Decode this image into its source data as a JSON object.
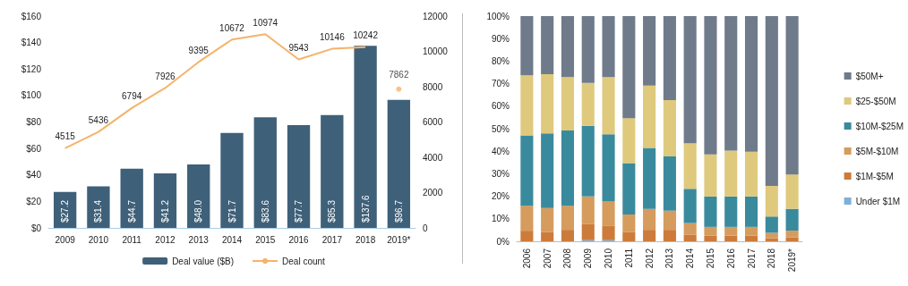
{
  "chart_data": [
    {
      "type": "bar",
      "categories": [
        "2009",
        "2010",
        "2011",
        "2012",
        "2013",
        "2014",
        "2015",
        "2016",
        "2017",
        "2018",
        "2019*"
      ],
      "series": [
        {
          "name": "Deal value ($B)",
          "color": "#3f6079",
          "values": [
            27.2,
            31.4,
            44.7,
            41.2,
            48.0,
            71.7,
            83.6,
            77.7,
            85.3,
            137.6,
            96.7
          ],
          "value_labels": [
            "$27.2",
            "$31.4",
            "$44.7",
            "$41.2",
            "$48.0",
            "$71.7",
            "$83.6",
            "$77.7",
            "$85.3",
            "$137.6",
            "$96.7"
          ]
        },
        {
          "name": "Deal count",
          "type": "line",
          "axis": "y2",
          "color": "#f5b36b",
          "values": [
            4515,
            5436,
            6794,
            7926,
            9395,
            10672,
            10974,
            9543,
            10146,
            10242,
            null
          ],
          "value_labels": [
            "4515",
            "5436",
            "6794",
            "7926",
            "9395",
            "10672",
            "10974",
            "9543",
            "10146",
            "10242",
            null
          ]
        },
        {
          "type": "scatter",
          "axis": "y2",
          "color": "#f5b36b",
          "values": [
            null,
            null,
            null,
            null,
            null,
            null,
            null,
            null,
            null,
            null,
            7862
          ],
          "value_labels": [
            null,
            null,
            null,
            null,
            null,
            null,
            null,
            null,
            null,
            null,
            "7862"
          ]
        }
      ],
      "ylim": [
        0,
        160
      ],
      "yticks": [
        {
          "value": 0,
          "label": "$0"
        },
        {
          "value": 20,
          "label": "$20"
        },
        {
          "value": 40,
          "label": "$40"
        },
        {
          "value": 60,
          "label": "$60"
        },
        {
          "value": 80,
          "label": "$80"
        },
        {
          "value": 100,
          "label": "$100"
        },
        {
          "value": 120,
          "label": "$120"
        },
        {
          "value": 140,
          "label": "$140"
        },
        {
          "value": 160,
          "label": "$160"
        }
      ],
      "y2lim": [
        0,
        12000
      ],
      "y2ticks": [
        0,
        2000,
        4000,
        6000,
        8000,
        10000,
        12000
      ],
      "grid": false,
      "legend": "bottom"
    },
    {
      "type": "bar",
      "stacked": true,
      "categories": [
        "2006",
        "2007",
        "2008",
        "2009",
        "2010",
        "2011",
        "2012",
        "2013",
        "2014",
        "2015",
        "2016",
        "2017",
        "2018",
        "2019*"
      ],
      "series": [
        {
          "name": "Under $1M",
          "color": "#7fb0d8",
          "values": [
            0,
            0,
            0,
            0.5,
            0.5,
            0,
            0,
            0,
            0,
            0,
            0,
            0,
            0,
            0
          ]
        },
        {
          "name": "$1M-$5M",
          "color": "#cd7b3a",
          "values": [
            4.7,
            4.2,
            5.1,
            7.1,
            6.3,
            4.2,
            5.1,
            5.1,
            3.0,
            2.5,
            2.5,
            2.5,
            1.3,
            1.7
          ]
        },
        {
          "name": "$5M-$10M",
          "color": "#d59c5e",
          "values": [
            11.1,
            10.6,
            10.7,
            12.3,
            11.0,
            7.7,
            9.3,
            8.5,
            5.1,
            3.9,
            3.9,
            3.9,
            2.5,
            3.0
          ]
        },
        {
          "name": "$10M-$25M",
          "color": "#3a8a9e",
          "values": [
            31.2,
            33.1,
            33.4,
            31.4,
            29.7,
            22.8,
            27.1,
            24.1,
            15.2,
            13.5,
            13.5,
            13.5,
            7.2,
            9.7
          ]
        },
        {
          "name": "$25-$50M",
          "color": "#dfc97d",
          "values": [
            26.7,
            26.3,
            23.7,
            19.0,
            25.4,
            20.0,
            27.6,
            25.0,
            20.3,
            18.7,
            20.4,
            19.9,
            13.6,
            15.3
          ]
        },
        {
          "name": "$50M+",
          "color": "#6f7b8a",
          "values": [
            26.3,
            25.8,
            27.1,
            29.7,
            27.1,
            45.3,
            30.9,
            37.3,
            56.4,
            61.4,
            59.7,
            60.2,
            75.4,
            70.3
          ]
        }
      ],
      "ylim": [
        0,
        100
      ],
      "yticks": [
        {
          "value": 0,
          "label": "0%"
        },
        {
          "value": 10,
          "label": "10%"
        },
        {
          "value": 20,
          "label": "20%"
        },
        {
          "value": 30,
          "label": "30%"
        },
        {
          "value": 40,
          "label": "40%"
        },
        {
          "value": 50,
          "label": "50%"
        },
        {
          "value": 60,
          "label": "60%"
        },
        {
          "value": 70,
          "label": "70%"
        },
        {
          "value": 80,
          "label": "80%"
        },
        {
          "value": 90,
          "label": "90%"
        },
        {
          "value": 100,
          "label": "100%"
        }
      ],
      "grid": false,
      "legend": "right"
    }
  ]
}
